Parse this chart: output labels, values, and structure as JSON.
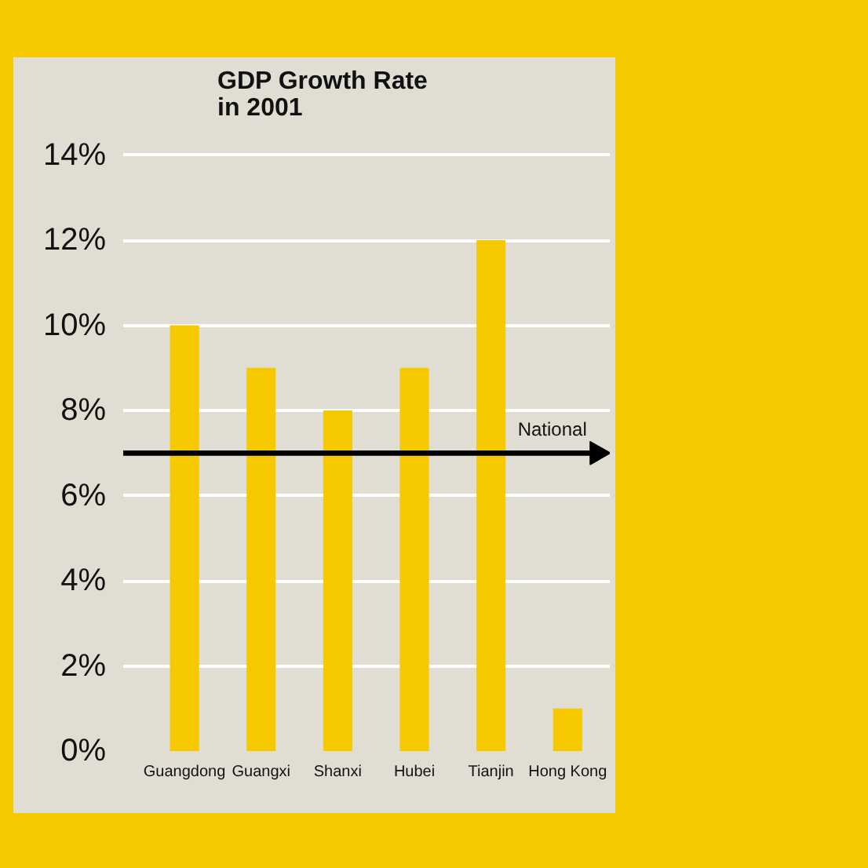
{
  "chart_data": {
    "type": "bar",
    "title": "GDP Growth Rate\nin 2001",
    "categories": [
      "Guangdong",
      "Guangxi",
      "Shanxi",
      "Hubei",
      "Tianjin",
      "Hong Kong"
    ],
    "values": [
      10,
      9,
      8,
      9,
      12,
      1
    ],
    "color": "#f5c800",
    "ylim": [
      0,
      14.6
    ],
    "yticks": [
      {
        "value": 0,
        "label": "0%"
      },
      {
        "value": 2,
        "label": "2%"
      },
      {
        "value": 4,
        "label": "4%"
      },
      {
        "value": 6,
        "label": "6%"
      },
      {
        "value": 8,
        "label": "8%"
      },
      {
        "value": 10,
        "label": "10%"
      },
      {
        "value": 12,
        "label": "12%"
      },
      {
        "value": 14,
        "label": "14%"
      }
    ],
    "grid": "y",
    "ref_lines": [
      {
        "axis": "y",
        "value": 7,
        "label": "National",
        "color": "#000000"
      }
    ]
  }
}
